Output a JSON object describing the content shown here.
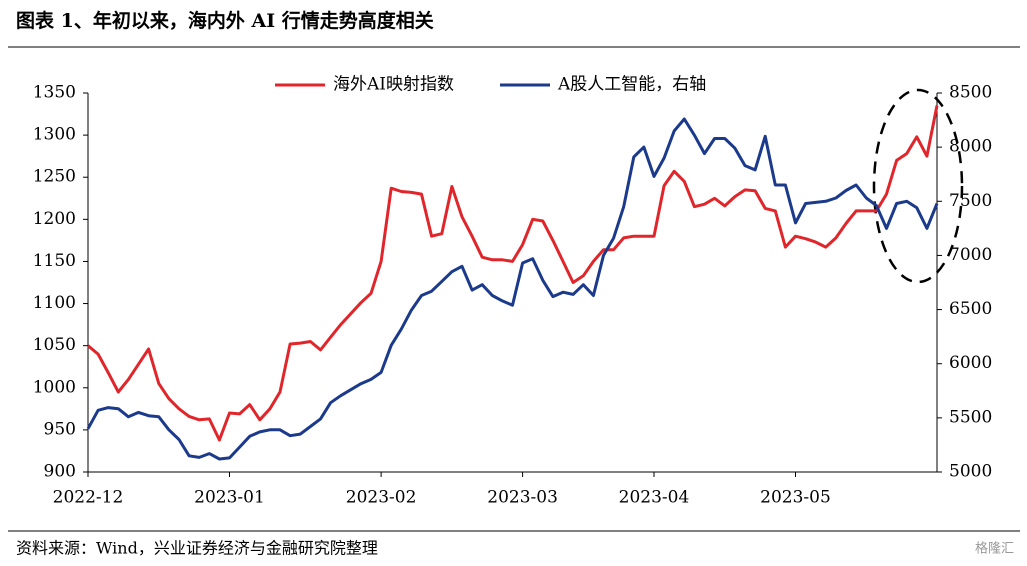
{
  "chart_data": {
    "type": "line",
    "title": "图表 1、年初以来，海内外 AI 行情走势高度相关",
    "source": "资料来源：Wind，兴业证券经济与金融研究院整理",
    "watermark": "格隆汇",
    "categories": [
      "2022-12",
      null,
      null,
      null,
      null,
      null,
      null,
      null,
      null,
      null,
      null,
      null,
      null,
      null,
      "2023-01",
      null,
      null,
      null,
      null,
      null,
      null,
      null,
      null,
      null,
      null,
      null,
      null,
      null,
      null,
      "2023-02",
      null,
      null,
      null,
      null,
      null,
      null,
      null,
      null,
      null,
      null,
      null,
      null,
      null,
      "2023-03",
      null,
      null,
      null,
      null,
      null,
      null,
      null,
      null,
      null,
      null,
      null,
      null,
      "2023-04",
      null,
      null,
      null,
      null,
      null,
      null,
      null,
      null,
      null,
      null,
      null,
      null,
      null,
      "2023-05",
      null,
      null,
      null,
      null,
      null,
      null,
      null,
      null,
      null,
      null,
      null,
      null,
      null,
      null
    ],
    "series": [
      {
        "name": "海外AI映射指数",
        "color": "#e0262b",
        "axis": "y",
        "values": [
          1050,
          1040,
          1018,
          995,
          1010,
          1028,
          1046,
          1005,
          987,
          975,
          966,
          962,
          963,
          938,
          970,
          969,
          980,
          962,
          975,
          995,
          1052,
          1053,
          1055,
          1045,
          1060,
          1075,
          1088,
          1101,
          1112,
          1150,
          1237,
          1233,
          1232,
          1230,
          1180,
          1183,
          1239,
          1203,
          1180,
          1155,
          1152,
          1152,
          1150,
          1170,
          1200,
          1198,
          1175,
          1150,
          1125,
          1133,
          1150,
          1164,
          1164,
          1178,
          1180,
          1180,
          1180,
          1240,
          1257,
          1245,
          1215,
          1218,
          1225,
          1216,
          1227,
          1235,
          1234,
          1213,
          1210,
          1167,
          1180,
          1177,
          1173,
          1167,
          1178,
          1195,
          1210,
          1210,
          1210,
          1230,
          1270,
          1278,
          1298,
          1275,
          1335
        ]
      },
      {
        "name": "A股人工智能，右轴",
        "color": "#1b3a8c",
        "axis": "y2",
        "values": [
          5400,
          5570,
          5595,
          5585,
          5510,
          5550,
          5520,
          5510,
          5390,
          5300,
          5150,
          5135,
          5170,
          5120,
          5130,
          5230,
          5330,
          5370,
          5390,
          5390,
          5335,
          5350,
          5420,
          5490,
          5640,
          5705,
          5760,
          5815,
          5855,
          5920,
          6170,
          6320,
          6495,
          6630,
          6670,
          6760,
          6850,
          6900,
          6680,
          6730,
          6630,
          6580,
          6540,
          6930,
          6970,
          6770,
          6620,
          6660,
          6640,
          6730,
          6630,
          7000,
          7160,
          7450,
          7910,
          8000,
          7730,
          7900,
          8150,
          8260,
          8110,
          7940,
          8080,
          8080,
          7990,
          7830,
          7790,
          8100,
          7650,
          7650,
          7300,
          7480,
          7490,
          7500,
          7530,
          7600,
          7650,
          7530,
          7460,
          7250,
          7480,
          7500,
          7440,
          7250,
          7480
        ]
      }
    ],
    "ylim": [
      900,
      1350
    ],
    "yticks": [
      900,
      950,
      1000,
      1050,
      1100,
      1150,
      1200,
      1250,
      1300,
      1350
    ],
    "y2lim": [
      5000,
      8500
    ],
    "y2ticks": [
      5000,
      5500,
      6000,
      6500,
      7000,
      7500,
      8000,
      8500
    ],
    "grid": false,
    "legend": "top"
  }
}
